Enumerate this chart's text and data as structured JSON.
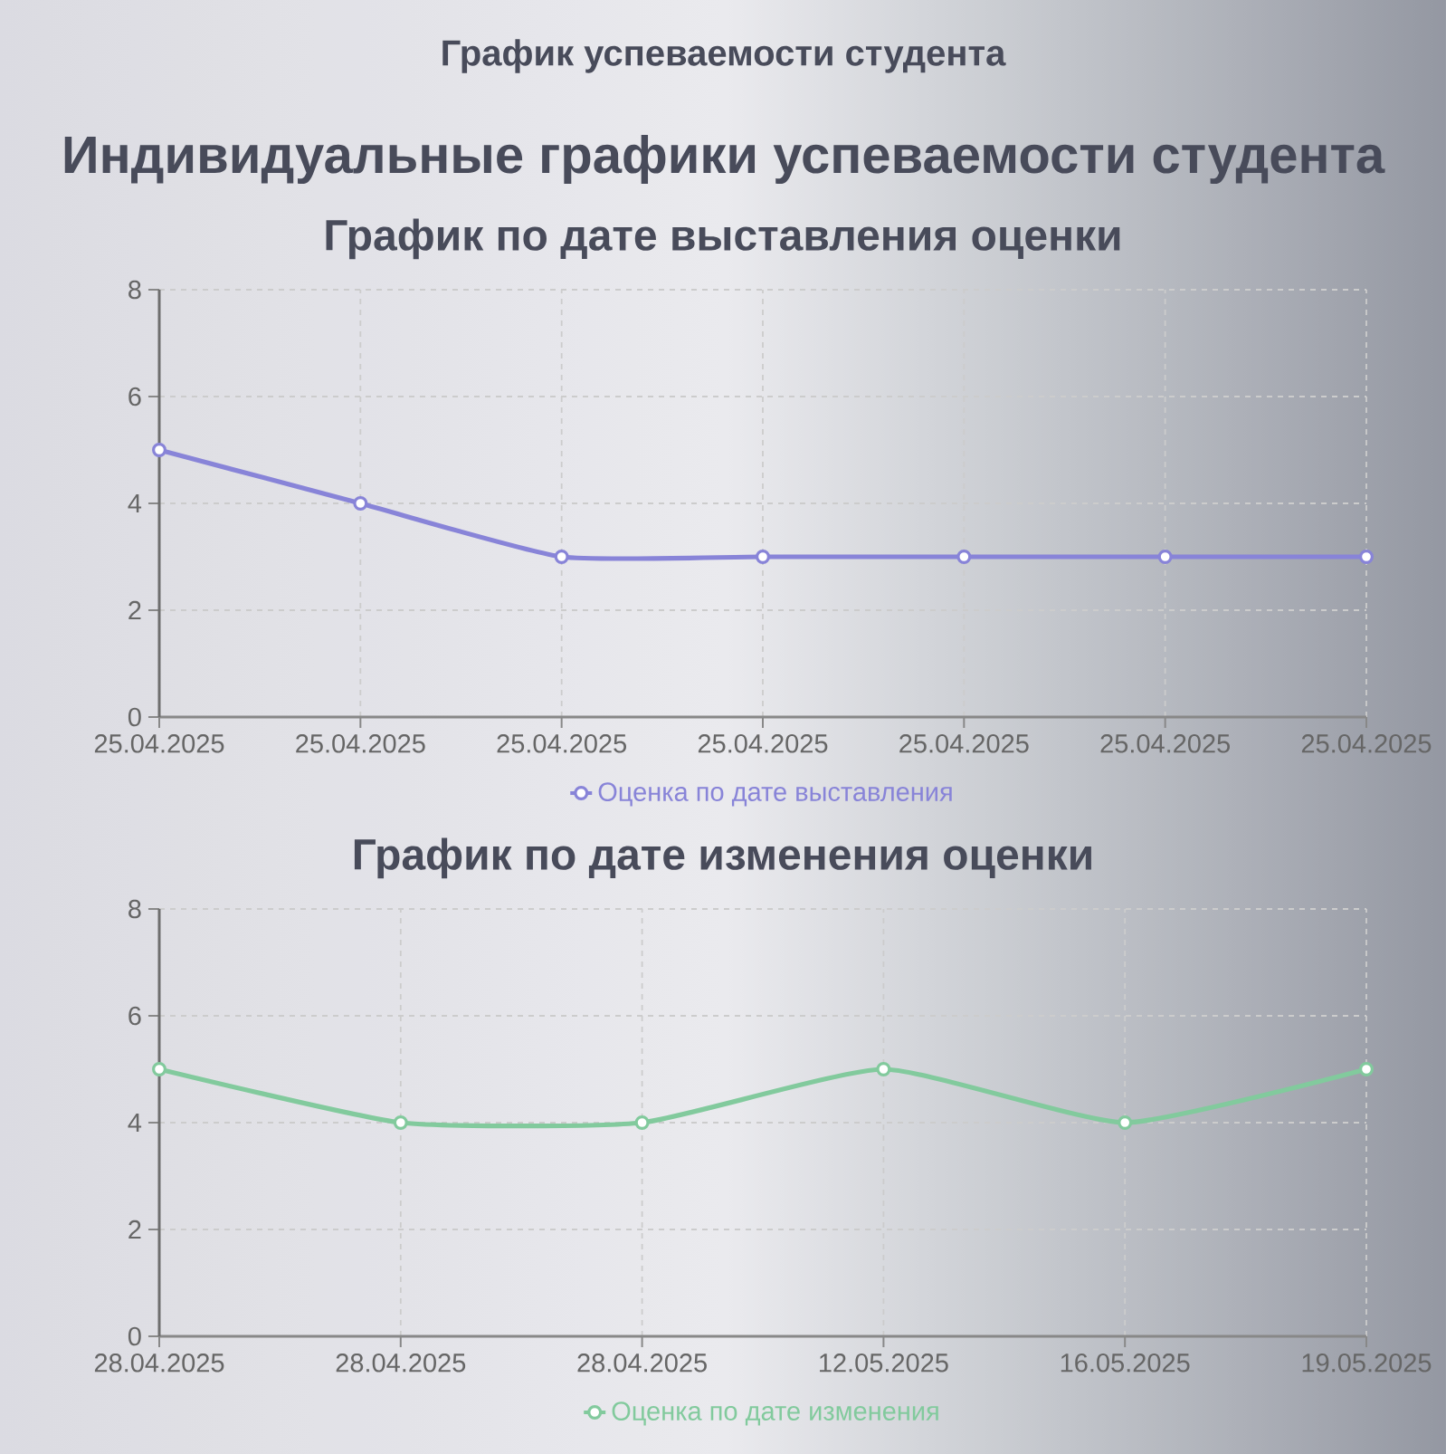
{
  "chart_data": [
    {
      "type": "line",
      "title": "График по дате выставления оценки",
      "annotations": [
        "График успеваемости студента",
        "Индивидуальные графики успеваемости студента"
      ],
      "categories": [
        "25.04.2025",
        "25.04.2025",
        "25.04.2025",
        "25.04.2025",
        "25.04.2025",
        "25.04.2025",
        "25.04.2025"
      ],
      "series": [
        {
          "name": "Оценка по дате выставления",
          "color": "#8884d8",
          "values": [
            5,
            4,
            3,
            3,
            3,
            3,
            3
          ]
        }
      ],
      "ylim": [
        0,
        8
      ],
      "yticks": [
        0,
        2,
        4,
        6,
        8
      ],
      "grid": true,
      "legend": "bottom",
      "marker": "circle",
      "line_style": "solid"
    },
    {
      "type": "line",
      "title": "График по дате изменения оценки",
      "categories": [
        "28.04.2025",
        "28.04.2025",
        "28.04.2025",
        "12.05.2025",
        "16.05.2025",
        "19.05.2025"
      ],
      "series": [
        {
          "name": "Оценка по дате изменения",
          "color": "#82ca9d",
          "values": [
            5,
            4,
            4,
            5,
            4,
            5
          ]
        }
      ],
      "ylim": [
        0,
        8
      ],
      "yticks": [
        0,
        2,
        4,
        6,
        8
      ],
      "grid": true,
      "legend": "bottom",
      "marker": "circle",
      "line_style": "solid"
    }
  ]
}
